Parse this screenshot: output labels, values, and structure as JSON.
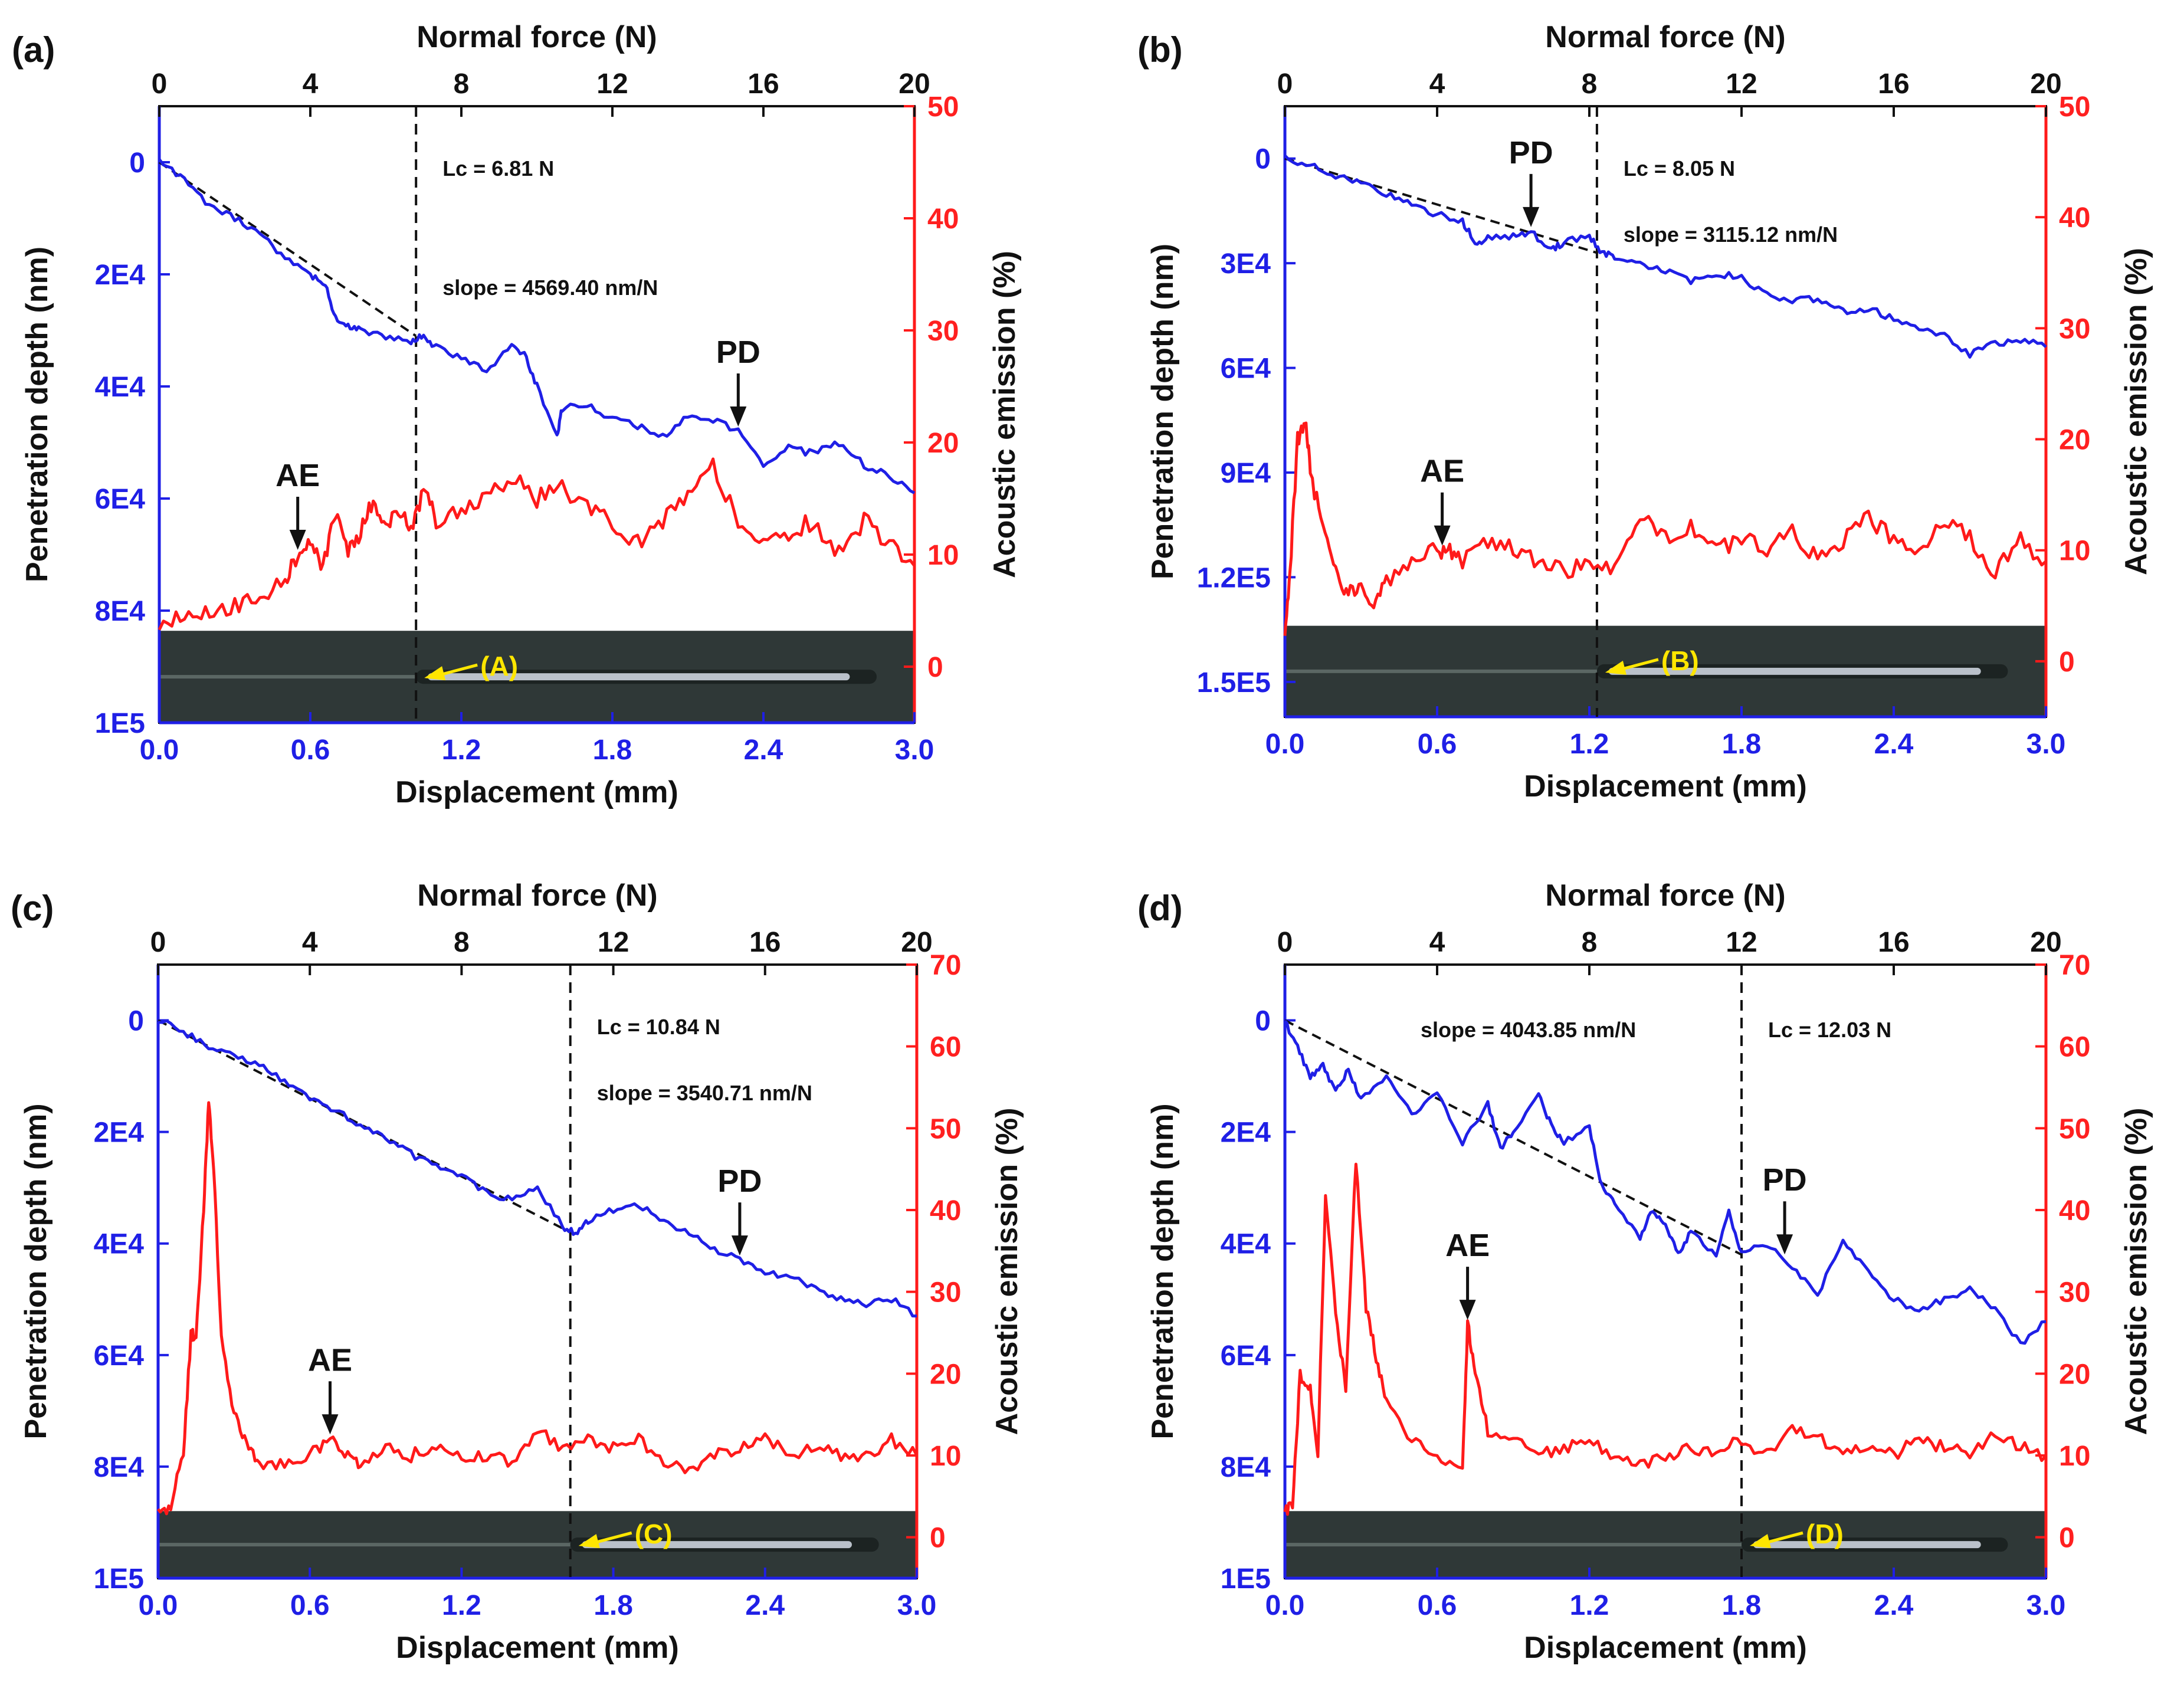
{
  "colors": {
    "penetration": "#1f1fe6",
    "acoustic": "#ff1a1a",
    "fit": "#111111",
    "strip": "#2f3837",
    "track": "#d6dde8",
    "yellow": "#ffe600"
  },
  "chart_data": [
    {
      "type": "line",
      "panel": "(a)",
      "xlabel": "Displacement (mm)",
      "x2label": "Normal force (N)",
      "ylabel": "Penetration depth (nm)",
      "y2label": "Acoustic emission (%)",
      "x_ticks": [
        "0.0",
        "0.6",
        "1.2",
        "1.8",
        "2.4",
        "3.0"
      ],
      "x2_ticks": [
        "0",
        "4",
        "8",
        "12",
        "16",
        "20"
      ],
      "y_ticks": [
        "0",
        "2E4",
        "4E4",
        "6E4",
        "8E4",
        "1E5"
      ],
      "y2_ticks": [
        "0",
        "10",
        "20",
        "30",
        "40",
        "50"
      ],
      "xlim": [
        0,
        3.0
      ],
      "x2lim": [
        0,
        20
      ],
      "ylim_inverted": [
        100000,
        -10000
      ],
      "y2lim": [
        -5,
        50
      ],
      "lc_label": "Lc = 6.81 N",
      "slope_label": "slope = 4569.40 nm/N",
      "lc_x": 1.02,
      "pd_label": "PD",
      "pd_x": 2.3,
      "ae_label": "AE",
      "ae_x": 0.55,
      "strip_label": "(A)",
      "series": [
        {
          "name": "Penetration depth",
          "axis": "left",
          "x": [
            0,
            0.1,
            0.2,
            0.3,
            0.4,
            0.5,
            0.6,
            0.66,
            0.7,
            0.75,
            0.8,
            0.9,
            1.0,
            1.05,
            1.1,
            1.2,
            1.3,
            1.4,
            1.45,
            1.5,
            1.58,
            1.6,
            1.7,
            1.8,
            1.9,
            2.0,
            2.1,
            2.2,
            2.3,
            2.4,
            2.5,
            2.6,
            2.7,
            2.8,
            2.9,
            3.0
          ],
          "y": [
            0,
            3000,
            8000,
            10000,
            13000,
            17000,
            20000,
            22000,
            28000,
            29000,
            30000,
            31000,
            32000,
            31000,
            33000,
            35000,
            37000,
            33000,
            34000,
            40000,
            49000,
            44000,
            43000,
            46000,
            47000,
            49000,
            45000,
            46000,
            48000,
            54000,
            51000,
            52000,
            50000,
            54000,
            56000,
            59000
          ]
        },
        {
          "name": "Acoustic emission",
          "axis": "right",
          "x": [
            0,
            0.1,
            0.2,
            0.3,
            0.4,
            0.5,
            0.55,
            0.6,
            0.65,
            0.7,
            0.75,
            0.8,
            0.85,
            0.9,
            0.95,
            1.0,
            1.05,
            1.1,
            1.2,
            1.3,
            1.4,
            1.5,
            1.6,
            1.7,
            1.8,
            1.9,
            2.0,
            2.1,
            2.2,
            2.3,
            2.4,
            2.5,
            2.6,
            2.7,
            2.8,
            2.9,
            3.0
          ],
          "y": [
            4,
            4.5,
            5,
            5.5,
            6.5,
            7.5,
            10,
            11,
            9,
            14,
            10,
            12,
            15,
            12,
            14,
            12,
            16,
            13,
            14,
            15,
            17,
            15,
            16,
            14,
            13,
            11,
            13,
            15,
            18,
            13,
            11,
            12,
            13,
            10,
            13,
            11,
            9
          ]
        }
      ]
    },
    {
      "type": "line",
      "panel": "(b)",
      "xlabel": "Displacement (mm)",
      "x2label": "Normal force (N)",
      "ylabel": "Penetration depth (nm)",
      "y2label": "Acoustic emission (%)",
      "x_ticks": [
        "0.0",
        "0.6",
        "1.2",
        "1.8",
        "2.4",
        "3.0"
      ],
      "x2_ticks": [
        "0",
        "4",
        "8",
        "12",
        "16",
        "20"
      ],
      "y_ticks": [
        "0",
        "3E4",
        "6E4",
        "9E4",
        "1.2E5",
        "1.5E5"
      ],
      "y2_ticks": [
        "0",
        "10",
        "20",
        "30",
        "40",
        "50"
      ],
      "xlim": [
        0,
        3.0
      ],
      "x2lim": [
        0,
        20
      ],
      "ylim_inverted": [
        160000,
        -15000
      ],
      "y2lim": [
        -5,
        50
      ],
      "lc_label": "Lc = 8.05 N",
      "slope_label": "slope = 3115.12 nm/N",
      "lc_x": 1.23,
      "pd_label": "PD",
      "pd_x": 0.97,
      "ae_label": "AE",
      "ae_x": 0.62,
      "strip_label": "(B)",
      "series": [
        {
          "name": "Penetration depth",
          "axis": "left",
          "x": [
            0,
            0.1,
            0.2,
            0.3,
            0.4,
            0.5,
            0.6,
            0.7,
            0.75,
            0.8,
            0.9,
            0.97,
            1.05,
            1.1,
            1.2,
            1.25,
            1.3,
            1.4,
            1.5,
            1.6,
            1.7,
            1.8,
            1.9,
            2.0,
            2.1,
            2.2,
            2.3,
            2.4,
            2.5,
            2.6,
            2.7,
            2.8,
            2.9,
            3.0
          ],
          "y": [
            0,
            2000,
            5000,
            7000,
            10000,
            13000,
            16000,
            18000,
            24000,
            23000,
            22000,
            21000,
            26000,
            24000,
            22000,
            27000,
            28000,
            30000,
            32000,
            35000,
            33000,
            34000,
            39000,
            41000,
            40000,
            44000,
            43000,
            46000,
            49000,
            51000,
            56000,
            53000,
            52000,
            54000
          ]
        },
        {
          "name": "Acoustic emission",
          "axis": "right",
          "x": [
            0,
            0.02,
            0.05,
            0.08,
            0.1,
            0.15,
            0.2,
            0.25,
            0.3,
            0.35,
            0.4,
            0.5,
            0.6,
            0.65,
            0.7,
            0.8,
            0.9,
            1.0,
            1.1,
            1.2,
            1.3,
            1.4,
            1.5,
            1.6,
            1.7,
            1.8,
            1.9,
            2.0,
            2.1,
            2.2,
            2.3,
            2.4,
            2.5,
            2.6,
            2.7,
            2.8,
            2.9,
            3.0
          ],
          "y": [
            3,
            8,
            20,
            22,
            17,
            12,
            8,
            6,
            7,
            5,
            7,
            9,
            10,
            10,
            9,
            11,
            10,
            9,
            8,
            9,
            8,
            13,
            11,
            12,
            10,
            11,
            10,
            12,
            9,
            11,
            13,
            11,
            10,
            13,
            11,
            8,
            11,
            9
          ]
        }
      ]
    },
    {
      "type": "line",
      "panel": "(c)",
      "xlabel": "Displacement (mm)",
      "x2label": "Normal force (N)",
      "ylabel": "Penetration depth (nm)",
      "y2label": "Acoustic emission (%)",
      "x_ticks": [
        "0.0",
        "0.6",
        "1.2",
        "1.8",
        "2.4",
        "3.0"
      ],
      "x2_ticks": [
        "0",
        "4",
        "8",
        "12",
        "16",
        "20"
      ],
      "y_ticks": [
        "0",
        "2E4",
        "4E4",
        "6E4",
        "8E4",
        "1E5"
      ],
      "y2_ticks": [
        "0",
        "10",
        "20",
        "30",
        "40",
        "50",
        "60",
        "70"
      ],
      "xlim": [
        0,
        3.0
      ],
      "x2lim": [
        0,
        20
      ],
      "ylim_inverted": [
        100000,
        -10000
      ],
      "y2lim": [
        -5,
        70
      ],
      "lc_label": "Lc = 10.84 N",
      "slope_label": "slope = 3540.71 nm/N",
      "lc_x": 1.63,
      "pd_label": "PD",
      "pd_x": 2.3,
      "ae_label": "AE",
      "ae_x": 0.68,
      "strip_label": "(C)",
      "series": [
        {
          "name": "Penetration depth",
          "axis": "left",
          "x": [
            0,
            0.1,
            0.2,
            0.3,
            0.4,
            0.5,
            0.6,
            0.7,
            0.8,
            0.9,
            1.0,
            1.1,
            1.2,
            1.3,
            1.4,
            1.5,
            1.6,
            1.65,
            1.7,
            1.8,
            1.9,
            2.0,
            2.1,
            2.2,
            2.3,
            2.4,
            2.5,
            2.6,
            2.7,
            2.8,
            2.9,
            3.0
          ],
          "y": [
            0,
            2000,
            5000,
            6000,
            8000,
            11000,
            14000,
            16000,
            19000,
            21000,
            24000,
            26000,
            28000,
            31000,
            32000,
            30000,
            37000,
            38000,
            36000,
            34000,
            33000,
            36000,
            38000,
            41000,
            43000,
            45000,
            46000,
            48000,
            50000,
            51000,
            50000,
            53000
          ]
        },
        {
          "name": "Acoustic emission",
          "axis": "right",
          "x": [
            0,
            0.05,
            0.1,
            0.13,
            0.15,
            0.18,
            0.2,
            0.22,
            0.25,
            0.3,
            0.35,
            0.4,
            0.5,
            0.6,
            0.68,
            0.75,
            0.8,
            0.9,
            1.0,
            1.1,
            1.2,
            1.3,
            1.4,
            1.5,
            1.6,
            1.7,
            1.8,
            1.9,
            2.0,
            2.1,
            2.2,
            2.3,
            2.4,
            2.5,
            2.6,
            2.7,
            2.8,
            2.9,
            3.0
          ],
          "y": [
            3,
            4,
            10,
            25,
            24,
            40,
            53,
            45,
            25,
            15,
            11,
            9,
            9,
            10,
            12,
            10,
            9,
            11,
            10,
            11,
            10,
            10,
            9,
            13,
            11,
            12,
            11,
            12,
            9,
            8,
            10,
            11,
            12,
            10,
            11,
            10,
            10,
            12,
            10
          ]
        }
      ]
    },
    {
      "type": "line",
      "panel": "(d)",
      "xlabel": "Displacement (mm)",
      "x2label": "Normal force (N)",
      "ylabel": "Penetration depth (nm)",
      "y2label": "Acoustic emission (%)",
      "x_ticks": [
        "0.0",
        "0.6",
        "1.2",
        "1.8",
        "2.4",
        "3.0"
      ],
      "x2_ticks": [
        "0",
        "4",
        "8",
        "12",
        "16",
        "20"
      ],
      "y_ticks": [
        "0",
        "2E4",
        "4E4",
        "6E4",
        "8E4",
        "1E5"
      ],
      "y2_ticks": [
        "0",
        "10",
        "20",
        "30",
        "40",
        "50",
        "60",
        "70"
      ],
      "xlim": [
        0,
        3.0
      ],
      "x2lim": [
        0,
        20
      ],
      "ylim_inverted": [
        100000,
        -10000
      ],
      "y2lim": [
        -5,
        70
      ],
      "lc_label": "Lc = 12.03 N",
      "slope_label": "slope = 4043.85 nm/N",
      "lc_x": 1.8,
      "pd_label": "PD",
      "pd_x": 1.97,
      "ae_label": "AE",
      "ae_x": 0.72,
      "strip_label": "(D)",
      "series": [
        {
          "name": "Penetration depth",
          "axis": "left",
          "x": [
            0,
            0.05,
            0.1,
            0.15,
            0.2,
            0.25,
            0.3,
            0.4,
            0.5,
            0.6,
            0.7,
            0.8,
            0.85,
            0.9,
            1.0,
            1.05,
            1.1,
            1.2,
            1.25,
            1.3,
            1.4,
            1.45,
            1.5,
            1.55,
            1.6,
            1.7,
            1.75,
            1.8,
            1.9,
            2.0,
            2.1,
            2.2,
            2.3,
            2.4,
            2.5,
            2.6,
            2.7,
            2.8,
            2.9,
            3.0
          ],
          "y": [
            0,
            5000,
            10000,
            8000,
            13000,
            9000,
            14000,
            10000,
            17000,
            13000,
            22000,
            15000,
            23000,
            20000,
            13000,
            19000,
            22000,
            19000,
            30000,
            33000,
            39000,
            34000,
            37000,
            42000,
            38000,
            42000,
            34000,
            42000,
            40000,
            44000,
            49000,
            40000,
            45000,
            50000,
            52000,
            50000,
            48000,
            52000,
            58000,
            54000
          ]
        },
        {
          "name": "Acoustic emission",
          "axis": "right",
          "x": [
            0,
            0.03,
            0.06,
            0.1,
            0.13,
            0.16,
            0.2,
            0.24,
            0.28,
            0.32,
            0.36,
            0.4,
            0.5,
            0.6,
            0.7,
            0.72,
            0.75,
            0.8,
            0.9,
            1.0,
            1.1,
            1.2,
            1.3,
            1.4,
            1.5,
            1.6,
            1.7,
            1.8,
            1.9,
            2.0,
            2.1,
            2.2,
            2.3,
            2.4,
            2.5,
            2.6,
            2.7,
            2.8,
            2.9,
            3.0
          ],
          "y": [
            3,
            4,
            20,
            18,
            10,
            42,
            28,
            18,
            46,
            28,
            22,
            17,
            12,
            10,
            8,
            26,
            20,
            13,
            12,
            10,
            11,
            12,
            10,
            9,
            10,
            11,
            10,
            12,
            10,
            13,
            12,
            11,
            11,
            10,
            12,
            11,
            10,
            13,
            11,
            10
          ]
        }
      ]
    }
  ]
}
